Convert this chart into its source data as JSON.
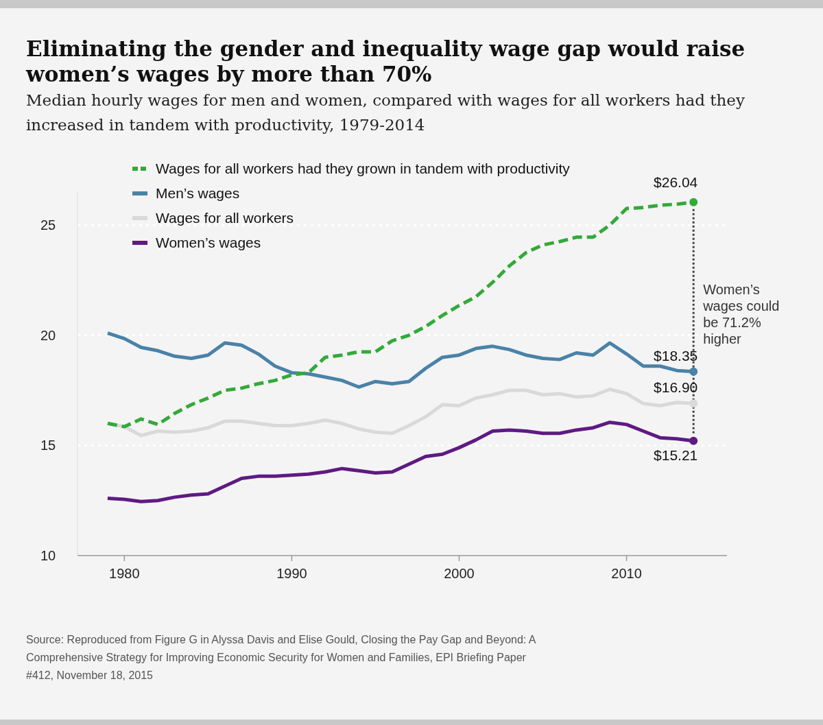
{
  "chart_data": {
    "type": "line",
    "title": "Eliminating the gender and inequality wage gap would raise women’s wages by more than 70%",
    "subtitle": "Median hourly wages for men and women, compared with wages for all workers had they increased in tandem with productivity, 1979-2014",
    "x": [
      1979,
      1980,
      1981,
      1982,
      1983,
      1984,
      1985,
      1986,
      1987,
      1988,
      1989,
      1990,
      1991,
      1992,
      1993,
      1994,
      1995,
      1996,
      1997,
      1998,
      1999,
      2000,
      2001,
      2002,
      2003,
      2004,
      2005,
      2006,
      2007,
      2008,
      2009,
      2010,
      2011,
      2012,
      2013,
      2014
    ],
    "xlim": [
      1977.2,
      2016
    ],
    "xticks": [
      1980,
      1990,
      2000,
      2010
    ],
    "ylim": [
      10,
      26.5
    ],
    "yticks": [
      10,
      15,
      20,
      25
    ],
    "grid": "y",
    "legend": "top left",
    "series": [
      {
        "name": "Wages for all workers had they grown in tandem with productivity",
        "color": "#33a93a",
        "line_style": "dashed",
        "values": [
          16.0,
          15.85,
          16.2,
          15.95,
          16.45,
          16.85,
          17.15,
          17.5,
          17.6,
          17.8,
          17.95,
          18.2,
          18.3,
          19.0,
          19.1,
          19.25,
          19.25,
          19.75,
          20.0,
          20.4,
          20.9,
          21.35,
          21.75,
          22.4,
          23.15,
          23.75,
          24.1,
          24.25,
          24.45,
          24.45,
          25.0,
          25.75,
          25.8,
          25.9,
          25.95,
          26.04
        ],
        "value_labels": [
          null,
          null,
          null,
          null,
          null,
          null,
          null,
          null,
          null,
          null,
          null,
          null,
          null,
          null,
          null,
          null,
          null,
          null,
          null,
          null,
          null,
          null,
          null,
          null,
          null,
          null,
          null,
          null,
          null,
          null,
          null,
          null,
          null,
          null,
          null,
          "$26.04"
        ]
      },
      {
        "name": "Men’s wages",
        "color": "#4a82a8",
        "line_style": "solid",
        "values": [
          20.1,
          19.85,
          19.45,
          19.3,
          19.05,
          18.95,
          19.1,
          19.65,
          19.55,
          19.15,
          18.6,
          18.3,
          18.25,
          18.1,
          17.95,
          17.65,
          17.9,
          17.8,
          17.9,
          18.5,
          19.0,
          19.1,
          19.4,
          19.5,
          19.35,
          19.1,
          18.95,
          18.9,
          19.2,
          19.1,
          19.65,
          19.15,
          18.6,
          18.6,
          18.4,
          18.35
        ],
        "value_labels": [
          null,
          null,
          null,
          null,
          null,
          null,
          null,
          null,
          null,
          null,
          null,
          null,
          null,
          null,
          null,
          null,
          null,
          null,
          null,
          null,
          null,
          null,
          null,
          null,
          null,
          null,
          null,
          null,
          null,
          null,
          null,
          null,
          null,
          null,
          null,
          "$18.35"
        ]
      },
      {
        "name": "Wages for all workers",
        "color": "#d9d9d9",
        "line_style": "solid",
        "values": [
          16.0,
          15.85,
          15.45,
          15.65,
          15.6,
          15.65,
          15.8,
          16.1,
          16.1,
          16.0,
          15.9,
          15.9,
          16.0,
          16.15,
          16.0,
          15.75,
          15.6,
          15.55,
          15.9,
          16.3,
          16.85,
          16.8,
          17.15,
          17.3,
          17.5,
          17.5,
          17.3,
          17.35,
          17.2,
          17.25,
          17.55,
          17.35,
          16.9,
          16.8,
          16.95,
          16.9
        ],
        "value_labels": [
          null,
          null,
          null,
          null,
          null,
          null,
          null,
          null,
          null,
          null,
          null,
          null,
          null,
          null,
          null,
          null,
          null,
          null,
          null,
          null,
          null,
          null,
          null,
          null,
          null,
          null,
          null,
          null,
          null,
          null,
          null,
          null,
          null,
          null,
          null,
          "$16.90"
        ]
      },
      {
        "name": "Women’s wages",
        "color": "#5e1a82",
        "line_style": "solid",
        "values": [
          12.6,
          12.55,
          12.45,
          12.5,
          12.65,
          12.75,
          12.8,
          13.15,
          13.5,
          13.6,
          13.6,
          13.65,
          13.7,
          13.8,
          13.95,
          13.85,
          13.75,
          13.8,
          14.15,
          14.5,
          14.6,
          14.9,
          15.25,
          15.65,
          15.7,
          15.65,
          15.55,
          15.55,
          15.7,
          15.8,
          16.05,
          15.95,
          15.65,
          15.35,
          15.3,
          15.21
        ],
        "value_labels": [
          null,
          null,
          null,
          null,
          null,
          null,
          null,
          null,
          null,
          null,
          null,
          null,
          null,
          null,
          null,
          null,
          null,
          null,
          null,
          null,
          null,
          null,
          null,
          null,
          null,
          null,
          null,
          null,
          null,
          null,
          null,
          null,
          null,
          null,
          null,
          "$15.21"
        ]
      }
    ],
    "annotations": [
      "Women’s wages could be 71.2% higher",
      "Source: Reproduced from Figure G in Alyssa Davis and Elise Gould, Closing the Pay Gap and Beyond: A Comprehensive Strategy for Improving Economic Security for Women and Families, EPI Briefing Paper #412, November 18, 2015"
    ]
  }
}
